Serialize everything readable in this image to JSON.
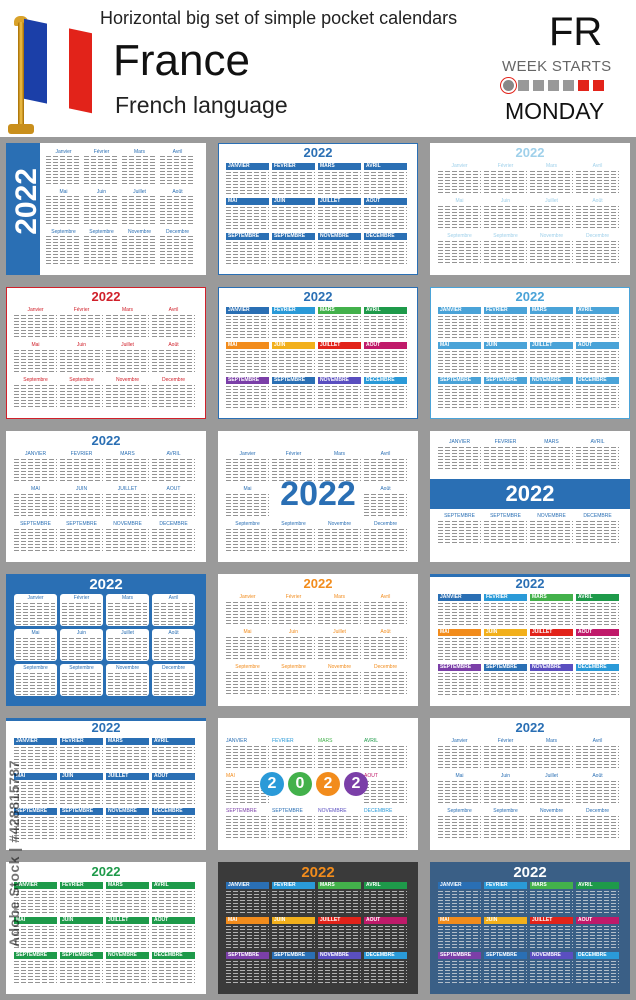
{
  "header": {
    "title": "Horizontal big set of simple pocket calendars",
    "country": "France",
    "language": "French language",
    "country_code": "FR",
    "week_starts_label": "WEEK STARTS",
    "week_start_day": "MONDAY"
  },
  "flag_colors": [
    "#1b3fa8",
    "#ffffff",
    "#e2231a"
  ],
  "year": "2022",
  "watermark": "Adobe Stock | #428815787",
  "months_title": [
    "Janvier",
    "Février",
    "Mars",
    "Avril",
    "Mai",
    "Juin",
    "Juillet",
    "Août",
    "Septembre",
    "Septembre",
    "Novembre",
    "Decembre"
  ],
  "months_upper": [
    "JANVIER",
    "FÉVRIER",
    "MARS",
    "AVRIL",
    "MAI",
    "JUIN",
    "JUILLET",
    "AOÛT",
    "SEPTEMBRE",
    "SEPTEMBRE",
    "NOVEMBRE",
    "DECEMBRE"
  ]
}
